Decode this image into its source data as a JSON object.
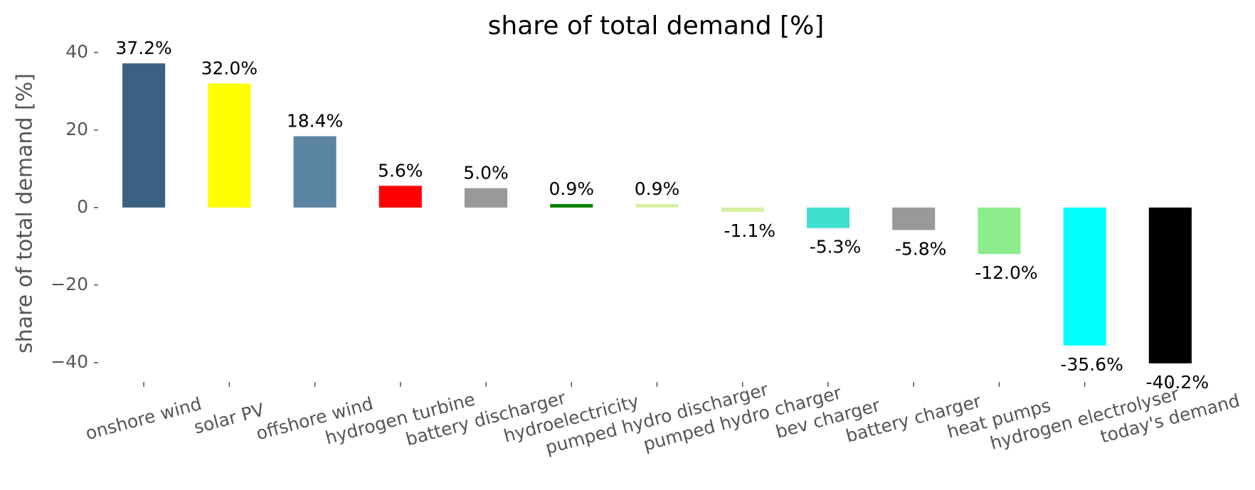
{
  "chart_data": {
    "type": "bar",
    "title": "share of total demand [%]",
    "ylabel": "share of total demand [%]",
    "categories": [
      "onshore wind",
      "solar PV",
      "offshore wind",
      "hydrogen turbine",
      "battery discharger",
      "hydroelectricity",
      "pumped hydro discharger",
      "pumped hydro charger",
      "bev charger",
      "battery charger",
      "heat pumps",
      "hydrogen electrolyser",
      "today's demand"
    ],
    "values": [
      37.2,
      32.0,
      18.4,
      5.6,
      5.0,
      0.9,
      0.9,
      -1.1,
      -5.3,
      -5.8,
      -12.0,
      -35.6,
      -40.2
    ],
    "value_labels": [
      "37.2%",
      "32.0%",
      "18.4%",
      "5.6%",
      "5.0%",
      "0.9%",
      "0.9%",
      "-1.1%",
      "-5.3%",
      "-5.8%",
      "-12.0%",
      "-35.6%",
      "-40.2%"
    ],
    "colors": [
      "#3b6182",
      "#ffff00",
      "#5b84a3",
      "#ff0000",
      "#999999",
      "#008000",
      "#d4f2a0",
      "#d4f2a0",
      "#40dfd0",
      "#999999",
      "#8ded8d",
      "#00ffff",
      "#000000"
    ],
    "ylim": [
      -44.07,
      41.07
    ],
    "yticks": [
      {
        "value": -40,
        "label": "−40"
      },
      {
        "value": -20,
        "label": "−20"
      },
      0,
      20,
      40
    ]
  }
}
